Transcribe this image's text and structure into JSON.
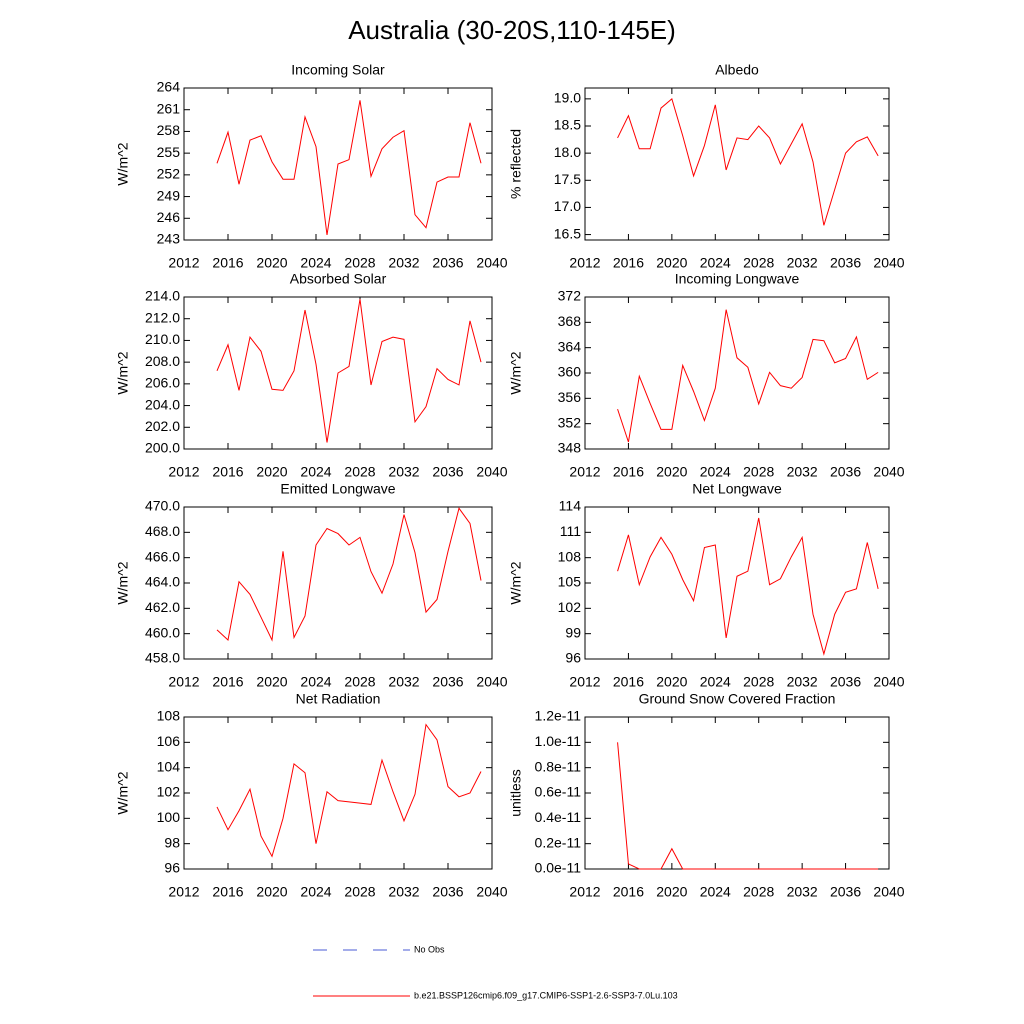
{
  "title": "Australia (30-20S,110-145E)",
  "legend": [
    {
      "label": "No Obs",
      "color": "#4a5bd6",
      "dashed": true
    },
    {
      "label": "b.e21.BSSP126cmip6.f09_g17.CMIP6-SSP1-2.6-SSP3-7.0Lu.103",
      "color": "#ff0000",
      "dashed": false
    }
  ],
  "chart_data": [
    {
      "type": "line",
      "title": "Incoming Solar",
      "ylabel": "W/m^2",
      "x": [
        2015,
        2016,
        2017,
        2018,
        2019,
        2020,
        2021,
        2022,
        2023,
        2024,
        2025,
        2026,
        2027,
        2028,
        2029,
        2030,
        2031,
        2032,
        2033,
        2034,
        2035,
        2036,
        2037,
        2038,
        2039
      ],
      "series": [
        {
          "color": "#ff0000",
          "values": [
            253.6,
            257.9,
            250.7,
            256.8,
            257.4,
            253.8,
            251.4,
            251.4,
            260.0,
            255.9,
            243.7,
            253.5,
            254.1,
            262.3,
            251.8,
            255.6,
            257.2,
            258.1,
            246.5,
            244.7,
            251.0,
            251.7,
            251.7,
            259.2,
            253.6
          ]
        }
      ],
      "xlim": [
        2012,
        2040
      ],
      "xticks": [
        2012,
        2016,
        2020,
        2024,
        2028,
        2032,
        2036,
        2040
      ],
      "ylim": [
        243,
        264
      ],
      "yticks": [
        243,
        246,
        249,
        252,
        255,
        258,
        261,
        264
      ]
    },
    {
      "type": "line",
      "title": "Albedo",
      "ylabel": "% reflected",
      "x": [
        2015,
        2016,
        2017,
        2018,
        2019,
        2020,
        2021,
        2022,
        2023,
        2024,
        2025,
        2026,
        2027,
        2028,
        2029,
        2030,
        2031,
        2032,
        2033,
        2034,
        2035,
        2036,
        2037,
        2038,
        2039
      ],
      "series": [
        {
          "color": "#ff0000",
          "values": [
            18.28,
            18.69,
            18.08,
            18.08,
            18.83,
            19.0,
            18.32,
            17.58,
            18.14,
            18.89,
            17.69,
            18.28,
            18.25,
            18.5,
            18.28,
            17.8,
            18.17,
            18.54,
            17.84,
            16.67,
            17.33,
            18.0,
            18.21,
            18.3,
            17.95
          ]
        }
      ],
      "xlim": [
        2012,
        2040
      ],
      "xticks": [
        2012,
        2016,
        2020,
        2024,
        2028,
        2032,
        2036,
        2040
      ],
      "ylim": [
        16.4,
        19.2
      ],
      "yticks": [
        {
          "value": 16.5,
          "label": "16.5"
        },
        {
          "value": 17,
          "label": "17.0"
        },
        {
          "value": 17.5,
          "label": "17.5"
        },
        {
          "value": 18,
          "label": "18.0"
        },
        {
          "value": 18.5,
          "label": "18.5"
        },
        {
          "value": 19,
          "label": "19.0"
        }
      ]
    },
    {
      "type": "line",
      "title": "Absorbed Solar",
      "ylabel": "W/m^2",
      "x": [
        2015,
        2016,
        2017,
        2018,
        2019,
        2020,
        2021,
        2022,
        2023,
        2024,
        2025,
        2026,
        2027,
        2028,
        2029,
        2030,
        2031,
        2032,
        2033,
        2034,
        2035,
        2036,
        2037,
        2038,
        2039
      ],
      "series": [
        {
          "color": "#ff0000",
          "values": [
            207.2,
            209.6,
            205.4,
            210.3,
            209.0,
            205.5,
            205.4,
            207.2,
            212.8,
            207.8,
            200.6,
            207.0,
            207.6,
            213.8,
            205.9,
            209.9,
            210.3,
            210.1,
            202.5,
            203.9,
            207.4,
            206.4,
            205.9,
            211.8,
            208.0
          ]
        }
      ],
      "xlim": [
        2012,
        2040
      ],
      "xticks": [
        2012,
        2016,
        2020,
        2024,
        2028,
        2032,
        2036,
        2040
      ],
      "ylim": [
        200,
        214
      ],
      "yticks": [
        {
          "value": 200,
          "label": "200.0"
        },
        {
          "value": 202,
          "label": "202.0"
        },
        {
          "value": 204,
          "label": "204.0"
        },
        {
          "value": 206,
          "label": "206.0"
        },
        {
          "value": 208,
          "label": "208.0"
        },
        {
          "value": 210,
          "label": "210.0"
        },
        {
          "value": 212,
          "label": "212.0"
        },
        {
          "value": 214,
          "label": "214.0"
        }
      ]
    },
    {
      "type": "line",
      "title": "Incoming Longwave",
      "ylabel": "W/m^2",
      "x": [
        2015,
        2016,
        2017,
        2018,
        2019,
        2020,
        2021,
        2022,
        2023,
        2024,
        2025,
        2026,
        2027,
        2028,
        2029,
        2030,
        2031,
        2032,
        2033,
        2034,
        2035,
        2036,
        2037,
        2038,
        2039
      ],
      "series": [
        {
          "color": "#ff0000",
          "values": [
            354.3,
            349.1,
            359.5,
            355.2,
            351.1,
            351.1,
            361.2,
            357.1,
            352.5,
            357.6,
            370.0,
            362.4,
            360.9,
            355.1,
            360.1,
            358.0,
            357.6,
            359.3,
            365.3,
            365.1,
            361.6,
            362.3,
            365.7,
            359.0,
            360.1
          ]
        }
      ],
      "xlim": [
        2012,
        2040
      ],
      "xticks": [
        2012,
        2016,
        2020,
        2024,
        2028,
        2032,
        2036,
        2040
      ],
      "ylim": [
        348,
        372
      ],
      "yticks": [
        348,
        352,
        356,
        360,
        364,
        368,
        372
      ]
    },
    {
      "type": "line",
      "title": "Emitted Longwave",
      "ylabel": "W/m^2",
      "x": [
        2015,
        2016,
        2017,
        2018,
        2019,
        2020,
        2021,
        2022,
        2023,
        2024,
        2025,
        2026,
        2027,
        2028,
        2029,
        2030,
        2031,
        2032,
        2033,
        2034,
        2035,
        2036,
        2037,
        2038,
        2039
      ],
      "series": [
        {
          "color": "#ff0000",
          "values": [
            460.3,
            459.5,
            464.1,
            463.1,
            461.3,
            459.5,
            466.5,
            459.7,
            461.4,
            467.0,
            468.3,
            467.9,
            467.0,
            467.6,
            464.9,
            463.2,
            465.5,
            469.4,
            466.4,
            461.7,
            462.7,
            466.5,
            469.9,
            468.7,
            464.2
          ]
        }
      ],
      "xlim": [
        2012,
        2040
      ],
      "xticks": [
        2012,
        2016,
        2020,
        2024,
        2028,
        2032,
        2036,
        2040
      ],
      "ylim": [
        458,
        470
      ],
      "yticks": [
        {
          "value": 458,
          "label": "458.0"
        },
        {
          "value": 460,
          "label": "460.0"
        },
        {
          "value": 462,
          "label": "462.0"
        },
        {
          "value": 464,
          "label": "464.0"
        },
        {
          "value": 466,
          "label": "466.0"
        },
        {
          "value": 468,
          "label": "468.0"
        },
        {
          "value": 470,
          "label": "470.0"
        }
      ]
    },
    {
      "type": "line",
      "title": "Net Longwave",
      "ylabel": "W/m^2",
      "x": [
        2015,
        2016,
        2017,
        2018,
        2019,
        2020,
        2021,
        2022,
        2023,
        2024,
        2025,
        2026,
        2027,
        2028,
        2029,
        2030,
        2031,
        2032,
        2033,
        2034,
        2035,
        2036,
        2037,
        2038,
        2039
      ],
      "series": [
        {
          "color": "#ff0000",
          "values": [
            106.4,
            110.7,
            104.8,
            108.1,
            110.4,
            108.4,
            105.4,
            102.9,
            109.2,
            109.5,
            98.5,
            105.8,
            106.4,
            112.7,
            104.8,
            105.5,
            108.1,
            110.4,
            101.3,
            96.6,
            101.3,
            103.9,
            104.3,
            109.8,
            104.3
          ]
        }
      ],
      "xlim": [
        2012,
        2040
      ],
      "xticks": [
        2012,
        2016,
        2020,
        2024,
        2028,
        2032,
        2036,
        2040
      ],
      "ylim": [
        96,
        114
      ],
      "yticks": [
        96,
        99,
        102,
        105,
        108,
        111,
        114
      ]
    },
    {
      "type": "line",
      "title": "Net Radiation",
      "ylabel": "W/m^2",
      "x": [
        2015,
        2016,
        2017,
        2018,
        2019,
        2020,
        2021,
        2022,
        2023,
        2024,
        2025,
        2026,
        2027,
        2028,
        2029,
        2030,
        2031,
        2032,
        2033,
        2034,
        2035,
        2036,
        2037,
        2038,
        2039
      ],
      "series": [
        {
          "color": "#ff0000",
          "values": [
            100.9,
            99.1,
            100.6,
            102.3,
            98.6,
            97.0,
            100.0,
            104.3,
            103.6,
            98.0,
            102.1,
            101.4,
            101.3,
            101.2,
            101.1,
            104.6,
            102.1,
            99.8,
            101.9,
            107.4,
            106.2,
            102.5,
            101.7,
            102.0,
            103.7
          ]
        }
      ],
      "xlim": [
        2012,
        2040
      ],
      "xticks": [
        2012,
        2016,
        2020,
        2024,
        2028,
        2032,
        2036,
        2040
      ],
      "ylim": [
        96,
        108
      ],
      "yticks": [
        96,
        98,
        100,
        102,
        104,
        106,
        108
      ]
    },
    {
      "type": "line",
      "title": "Ground Snow Covered Fraction",
      "ylabel": "unitless",
      "x": [
        2015,
        2016,
        2017,
        2018,
        2019,
        2020,
        2021,
        2022,
        2023,
        2024,
        2025,
        2026,
        2027,
        2028,
        2029,
        2030,
        2031,
        2032,
        2033,
        2034,
        2035,
        2036,
        2037,
        2038,
        2039
      ],
      "series": [
        {
          "color": "#ff0000",
          "values": [
            1e-11,
            4e-13,
            0,
            0,
            0,
            1.6e-12,
            0,
            0,
            0,
            0,
            0,
            0,
            0,
            0,
            0,
            0,
            0,
            0,
            0,
            0,
            0,
            0,
            0,
            0,
            0
          ]
        }
      ],
      "xlim": [
        2012,
        2040
      ],
      "xticks": [
        2012,
        2016,
        2020,
        2024,
        2028,
        2032,
        2036,
        2040
      ],
      "ylim": [
        0,
        1.2e-11
      ],
      "yticks": [
        {
          "value": 0,
          "label": "0.0e-11"
        },
        {
          "value": 2e-12,
          "label": "0.2e-11"
        },
        {
          "value": 4e-12,
          "label": "0.4e-11"
        },
        {
          "value": 6e-12,
          "label": "0.6e-11"
        },
        {
          "value": 8e-12,
          "label": "0.8e-11"
        },
        {
          "value": 1e-11,
          "label": "1.0e-11"
        },
        {
          "value": 1.2e-11,
          "label": "1.2e-11"
        }
      ]
    }
  ]
}
